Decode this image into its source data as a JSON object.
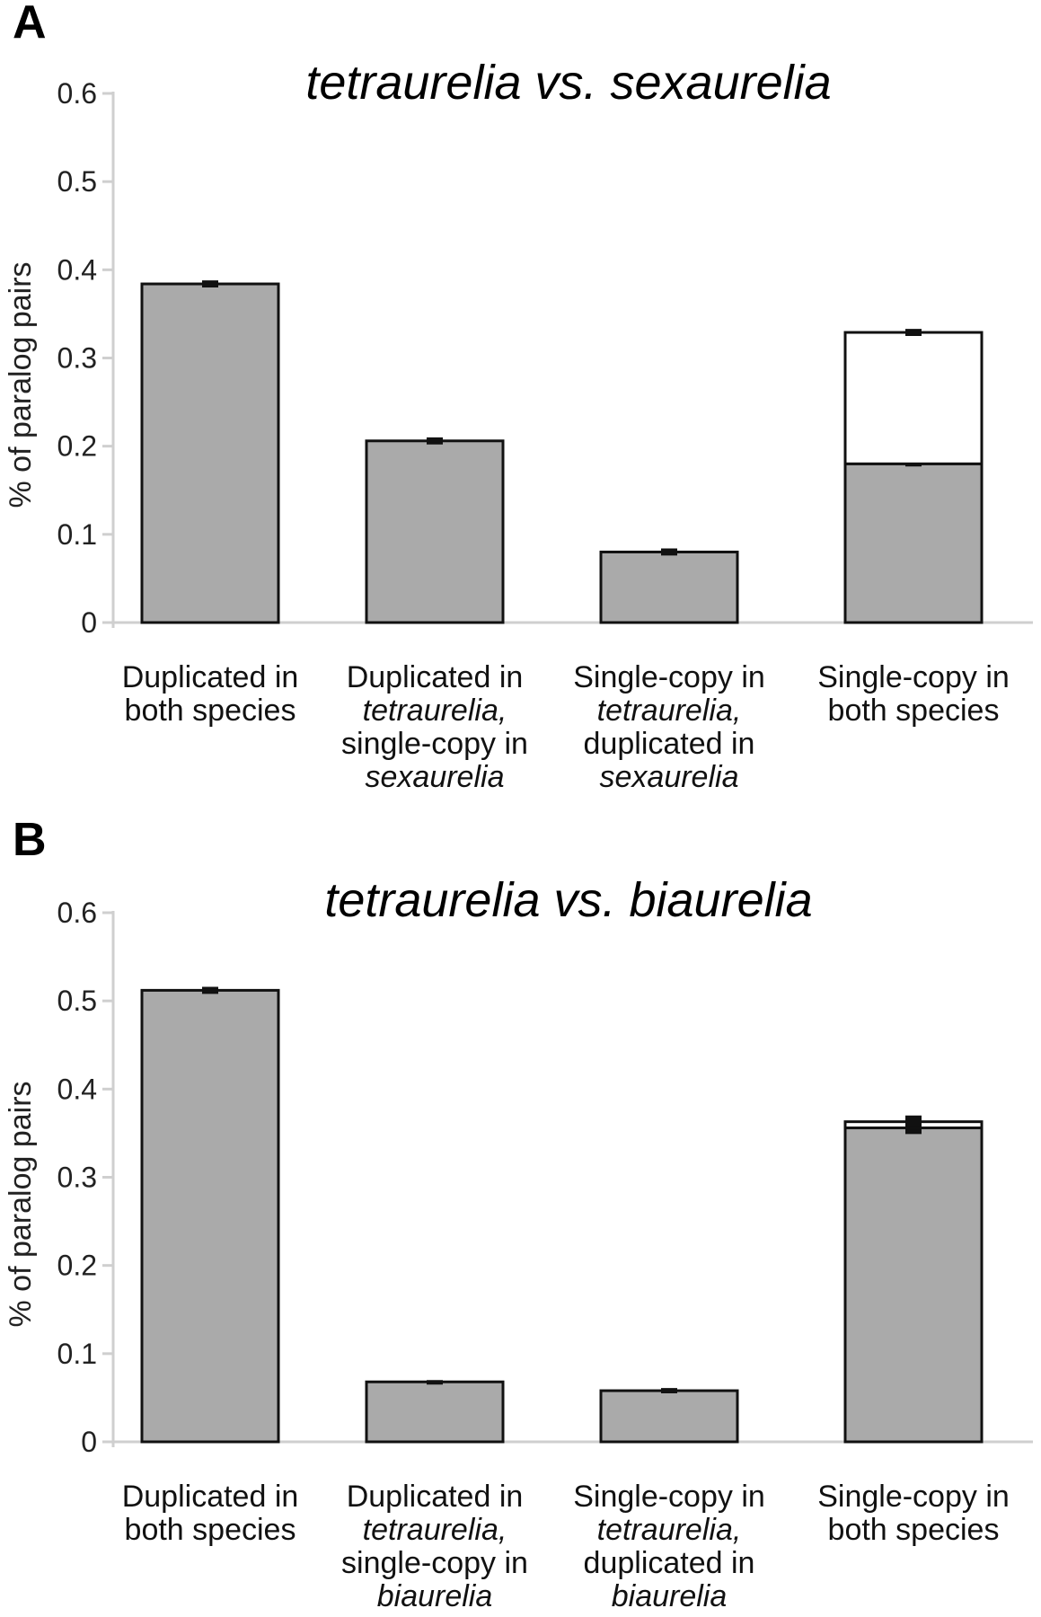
{
  "chart_data": [
    {
      "panel": "A",
      "type": "bar",
      "title_parts": [
        "tetraurelia",
        " vs. ",
        "sexaurelia"
      ],
      "ylabel": "% of paralog pairs",
      "ylim": [
        0,
        0.6
      ],
      "yticks": [
        "0",
        "0.1",
        "0.2",
        "0.3",
        "0.4",
        "0.5",
        "0.6"
      ],
      "grid": false,
      "categories": [
        [
          [
            {
              "t": "Duplicated in",
              "i": false
            }
          ],
          [
            {
              "t": "both species",
              "i": false
            }
          ]
        ],
        [
          [
            {
              "t": "Duplicated in",
              "i": false
            }
          ],
          [
            {
              "t": "tetraurelia,",
              "i": true
            }
          ],
          [
            {
              "t": "single-copy in",
              "i": false
            }
          ],
          [
            {
              "t": "sexaurelia",
              "i": true
            }
          ]
        ],
        [
          [
            {
              "t": "Single-copy in",
              "i": false
            }
          ],
          [
            {
              "t": "tetraurelia,",
              "i": true
            }
          ],
          [
            {
              "t": "duplicated in",
              "i": false
            }
          ],
          [
            {
              "t": "sexaurelia",
              "i": true
            }
          ]
        ],
        [
          [
            {
              "t": "Single-copy in",
              "i": false
            }
          ],
          [
            {
              "t": "both species",
              "i": false
            }
          ]
        ]
      ],
      "series": [
        {
          "color": "#aaaaaa",
          "values": [
            0.384,
            0.206,
            0.08,
            0.18
          ],
          "errors": [
            0.003,
            0.003,
            0.003,
            0.002
          ]
        },
        {
          "color": "#ffffff",
          "values": [
            0,
            0,
            0,
            0.149
          ],
          "errors": [
            0,
            0,
            0,
            0.003
          ]
        }
      ]
    },
    {
      "panel": "B",
      "type": "bar",
      "title_parts": [
        "tetraurelia",
        " vs. ",
        "biaurelia"
      ],
      "ylabel": "% of paralog pairs",
      "ylim": [
        0,
        0.6
      ],
      "yticks": [
        "0",
        "0.1",
        "0.2",
        "0.3",
        "0.4",
        "0.5",
        "0.6"
      ],
      "grid": false,
      "categories": [
        [
          [
            {
              "t": "Duplicated in",
              "i": false
            }
          ],
          [
            {
              "t": "both species",
              "i": false
            }
          ]
        ],
        [
          [
            {
              "t": "Duplicated in",
              "i": false
            }
          ],
          [
            {
              "t": "tetraurelia,",
              "i": true
            }
          ],
          [
            {
              "t": "single-copy in",
              "i": false
            }
          ],
          [
            {
              "t": "biaurelia",
              "i": true
            }
          ]
        ],
        [
          [
            {
              "t": "Single-copy in",
              "i": false
            }
          ],
          [
            {
              "t": "tetraurelia,",
              "i": true
            }
          ],
          [
            {
              "t": "duplicated in",
              "i": false
            }
          ],
          [
            {
              "t": "biaurelia",
              "i": true
            }
          ]
        ],
        [
          [
            {
              "t": "Single-copy in",
              "i": false
            }
          ],
          [
            {
              "t": "both species",
              "i": false
            }
          ]
        ]
      ],
      "series": [
        {
          "color": "#aaaaaa",
          "values": [
            0.512,
            0.068,
            0.058,
            0.356
          ],
          "errors": [
            0.003,
            0.001,
            0.002,
            0.006
          ]
        },
        {
          "color": "#ffffff",
          "values": [
            0,
            0,
            0,
            0.007
          ],
          "errors": [
            0,
            0,
            0,
            0.006
          ]
        }
      ]
    }
  ]
}
